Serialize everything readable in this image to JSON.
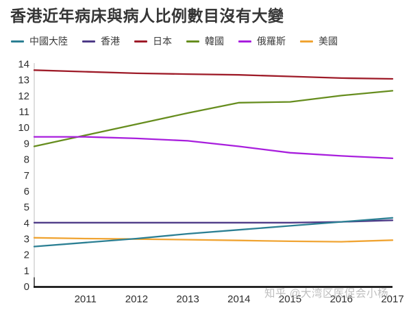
{
  "title": "香港近年病床與病人比例數目沒有大變",
  "watermark": "知乎 @大湾区医促会小杨",
  "chart_data": {
    "type": "line",
    "x": [
      2010,
      2011,
      2012,
      2013,
      2014,
      2015,
      2016,
      2017
    ],
    "x_tick_labels": [
      "2011",
      "2012",
      "2013",
      "2014",
      "2015",
      "2016",
      "2017"
    ],
    "y_ticks": [
      0,
      1,
      2,
      3,
      4,
      5,
      6,
      7,
      8,
      9,
      10,
      11,
      12,
      13,
      14
    ],
    "ylim": [
      0,
      14
    ],
    "grid": false,
    "legend_position": "top-left",
    "axis_color": "#c9c9c9",
    "baseline_color": "#141414",
    "tick_label_color": "#2e2e2e",
    "series": [
      {
        "name": "中國大陸",
        "color": "#2b7f93",
        "values": [
          2.5,
          2.75,
          3.0,
          3.3,
          3.55,
          3.8,
          4.05,
          4.3
        ]
      },
      {
        "name": "香港",
        "color": "#4d3a87",
        "values": [
          4.0,
          4.0,
          4.0,
          4.0,
          4.0,
          4.0,
          4.05,
          4.15
        ]
      },
      {
        "name": "日本",
        "color": "#9e1b28",
        "values": [
          13.6,
          13.5,
          13.4,
          13.35,
          13.3,
          13.2,
          13.1,
          13.05
        ]
      },
      {
        "name": "韓國",
        "color": "#668d1e",
        "values": [
          8.8,
          9.5,
          10.2,
          10.9,
          11.55,
          11.6,
          12.0,
          12.3
        ]
      },
      {
        "name": "俄羅斯",
        "color": "#a81edd",
        "values": [
          9.4,
          9.4,
          9.3,
          9.15,
          8.8,
          8.4,
          8.2,
          8.05
        ]
      },
      {
        "name": "美國",
        "color": "#f0a432",
        "values": [
          3.05,
          3.0,
          2.97,
          2.93,
          2.88,
          2.83,
          2.8,
          2.9
        ]
      }
    ]
  }
}
